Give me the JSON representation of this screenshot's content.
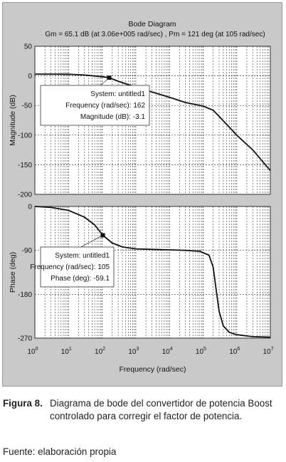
{
  "figure": {
    "title": "Bode Diagram",
    "subtitle": "Gm = 65.1 dB (at 3.06e+005 rad/sec) ,  Pm = 121 deg (at 105 rad/sec)"
  },
  "chart_data": [
    {
      "type": "line",
      "panel": "magnitude",
      "ylabel": "Magnitude (dB)",
      "xlabel": "",
      "xscale": "log",
      "xlim": [
        1,
        10000000
      ],
      "ylim": [
        -200,
        50
      ],
      "yticks": [
        "50",
        "0",
        "-50",
        "-100",
        "-150",
        "-200"
      ],
      "grid": true,
      "series": [
        {
          "x": [
            1,
            3,
            10,
            30,
            100,
            162,
            300,
            1000,
            3000,
            10000,
            30000,
            100000,
            200000,
            400000,
            1000000,
            3000000,
            10000000
          ],
          "y": [
            3,
            3,
            2.8,
            1.5,
            -1.5,
            -3.1,
            -9,
            -19,
            -27,
            -36,
            -45,
            -51,
            -58,
            -76,
            -100,
            -125,
            -160
          ]
        }
      ],
      "marker": {
        "x": 162,
        "y": -3.1
      },
      "datatip": {
        "line1": "System: untitled1",
        "line2": "Frequency (rad/sec): 162",
        "line3": "Magnitude (dB): -3.1"
      }
    },
    {
      "type": "line",
      "panel": "phase",
      "ylabel": "Phase (deg)",
      "xlabel": "Frequency  (rad/sec)",
      "xscale": "log",
      "xlim": [
        1,
        10000000
      ],
      "ylim": [
        -270,
        0
      ],
      "yticks": [
        "0",
        "-90",
        "-180",
        "-270"
      ],
      "xticks": [
        "10^0",
        "10^1",
        "10^2",
        "10^3",
        "10^4",
        "10^5",
        "10^6",
        "10^7"
      ],
      "grid": true,
      "series": [
        {
          "x": [
            1,
            3,
            10,
            30,
            60,
            105,
            200,
            400,
            1000,
            3000,
            10000,
            30000,
            80000,
            150000,
            200000,
            250000,
            300000,
            400000,
            600000,
            1000000,
            3000000,
            10000000
          ],
          "y": [
            0,
            -2,
            -8,
            -22,
            -38,
            -59.1,
            -75,
            -83,
            -87,
            -88,
            -89,
            -90,
            -92,
            -100,
            -125,
            -175,
            -215,
            -245,
            -258,
            -263,
            -267,
            -268
          ]
        }
      ],
      "marker": {
        "x": 105,
        "y": -59.1
      },
      "datatip": {
        "line1": "System: untitled1",
        "line2": "Frequency (rad/sec): 105",
        "line3": "Phase (deg): -59.1"
      }
    }
  ],
  "caption": {
    "label": "Figura 8.",
    "text": "Diagrama de bode del convertidor de potencia Boost controlado para corregir el factor de potencia."
  },
  "source": "Fuente: elaboración propia",
  "colors": {
    "background": "#c9c9c9",
    "axes": "#ffffff",
    "line": "#111111",
    "grid": "#333333"
  }
}
